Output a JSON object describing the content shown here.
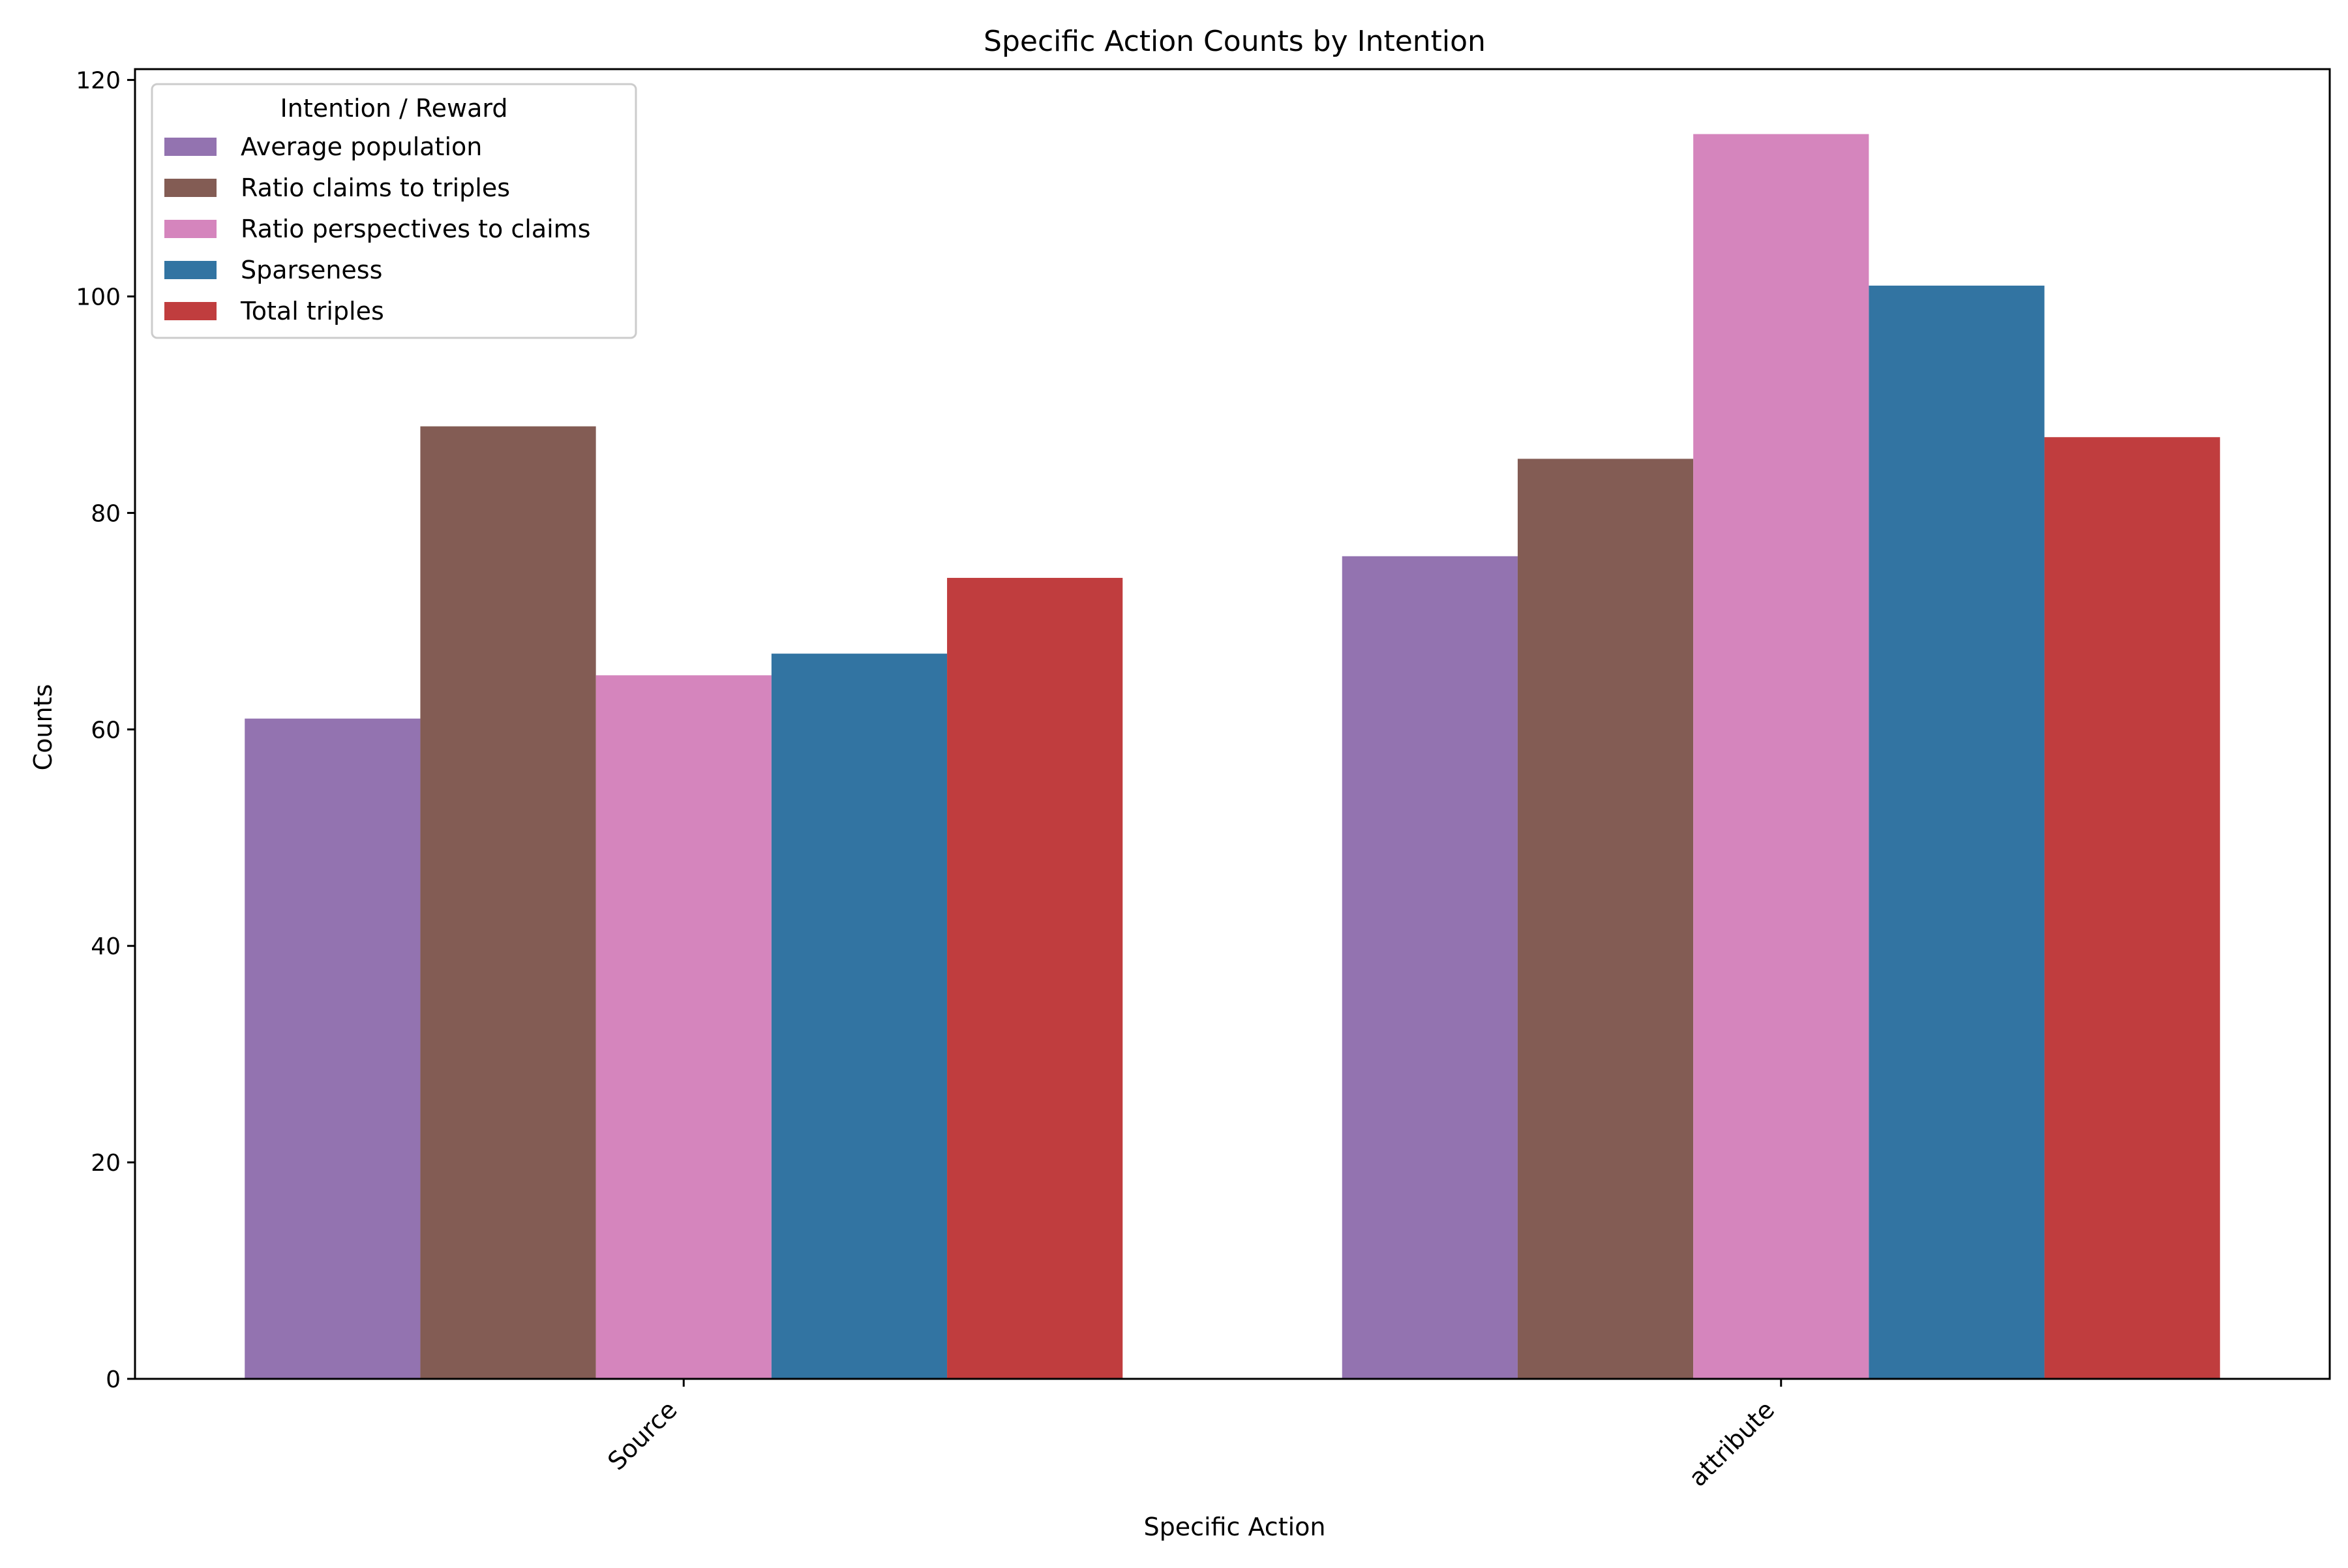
{
  "chart_data": {
    "type": "bar",
    "title": "Specific Action Counts by Intention",
    "xlabel": "Specific Action",
    "ylabel": "Counts",
    "categories": [
      "Source",
      "attribute"
    ],
    "ylim": [
      0,
      121
    ],
    "yticks": [
      0,
      20,
      40,
      60,
      80,
      100,
      120
    ],
    "grid": false,
    "legend": {
      "title": "Intention / Reward",
      "placement": "top-left"
    },
    "series": [
      {
        "name": "Average population",
        "color": "#9373b0",
        "values": [
          61,
          76
        ]
      },
      {
        "name": "Ratio claims to triples",
        "color": "#835c54",
        "values": [
          88,
          85
        ]
      },
      {
        "name": "Ratio perspectives to claims",
        "color": "#d585bd",
        "values": [
          65,
          115
        ]
      },
      {
        "name": "Sparseness",
        "color": "#3274a2",
        "values": [
          67,
          101
        ]
      },
      {
        "name": "Total triples",
        "color": "#c03d3e",
        "values": [
          74,
          87
        ]
      }
    ]
  }
}
